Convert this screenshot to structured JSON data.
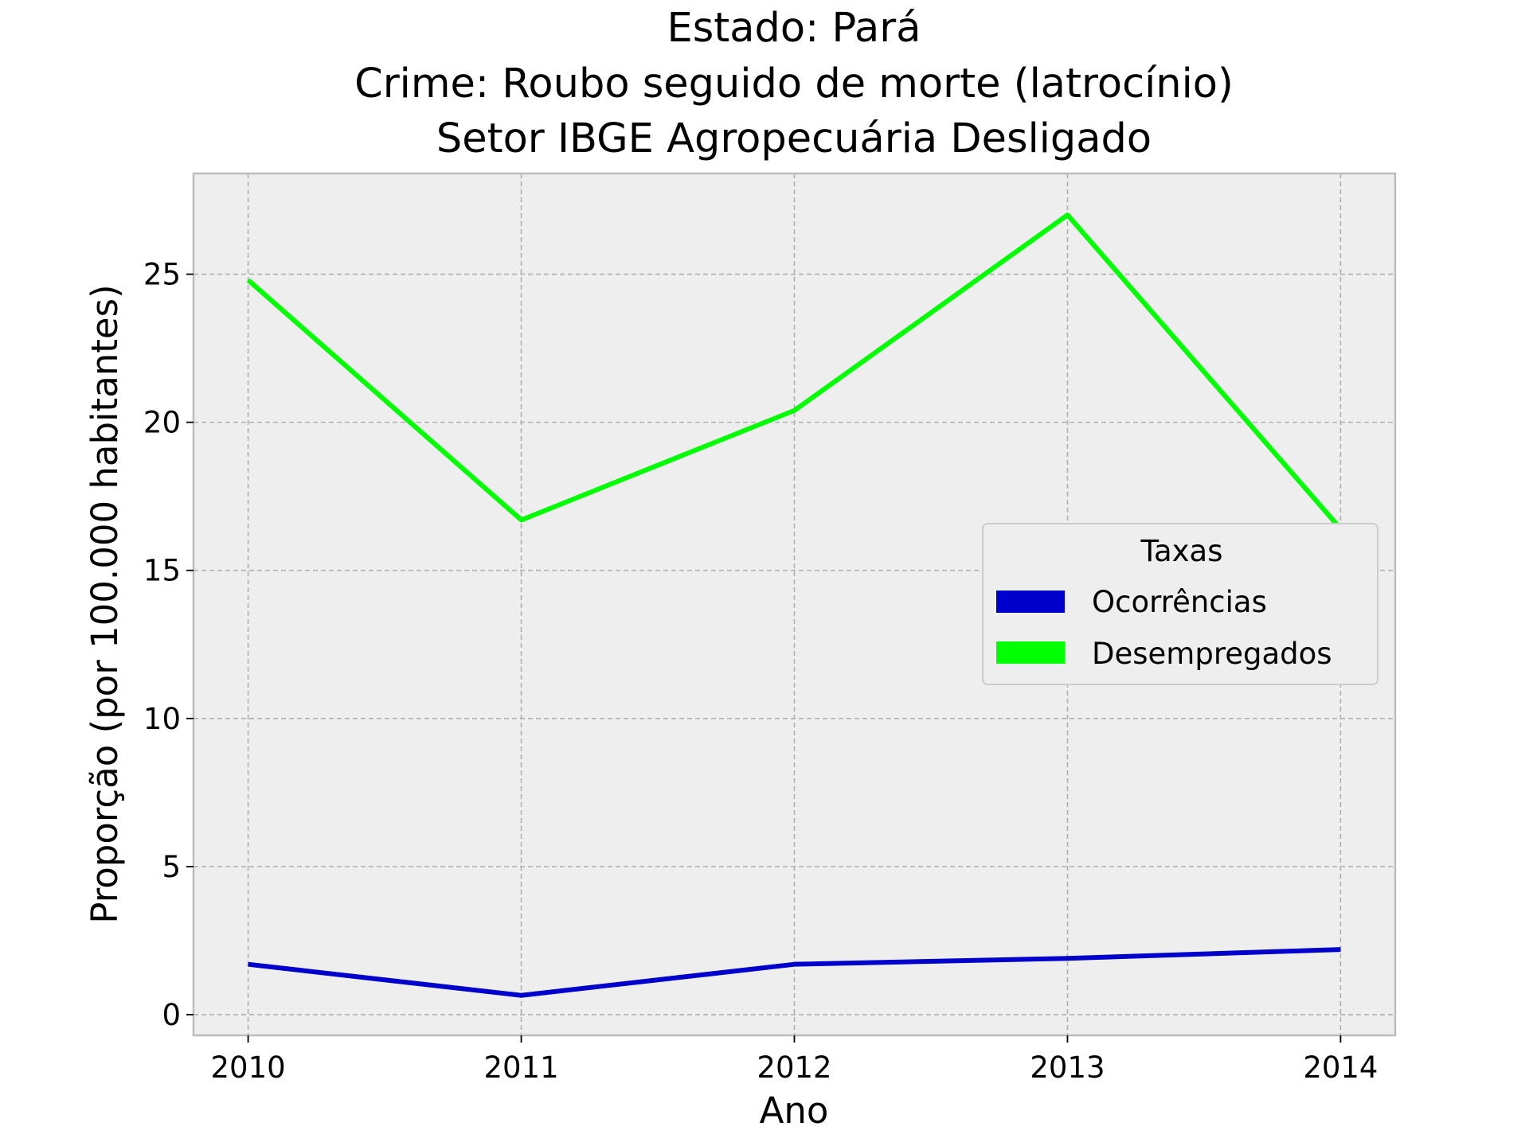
{
  "chart_data": {
    "type": "line",
    "title_lines": [
      "Estado: Pará",
      "Crime: Roubo seguido de morte (latrocínio)",
      "Setor IBGE  Agropecuária   Desligado"
    ],
    "xlabel": "Ano",
    "ylabel": "Proporção (por 100.000 habitantes)",
    "x": [
      "2010",
      "2011",
      "2012",
      "2013",
      "2014"
    ],
    "xlim": [
      2009.8,
      2014.2
    ],
    "ylim": [
      -0.7,
      28.4
    ],
    "yticks": [
      "0",
      "5",
      "10",
      "15",
      "20",
      "25"
    ],
    "grid": true,
    "legend": {
      "title": "Taxas",
      "placement": "center-right"
    },
    "series": [
      {
        "name": "Ocorrências",
        "color": "#0000cc",
        "values": [
          1.7,
          0.65,
          1.7,
          1.9,
          2.2
        ]
      },
      {
        "name": "Desempregados",
        "color": "#00ff00",
        "values": [
          24.8,
          16.7,
          20.4,
          27.0,
          16.4
        ]
      }
    ],
    "background": "#eeeeee",
    "grid_color": "#b0b0b0"
  }
}
